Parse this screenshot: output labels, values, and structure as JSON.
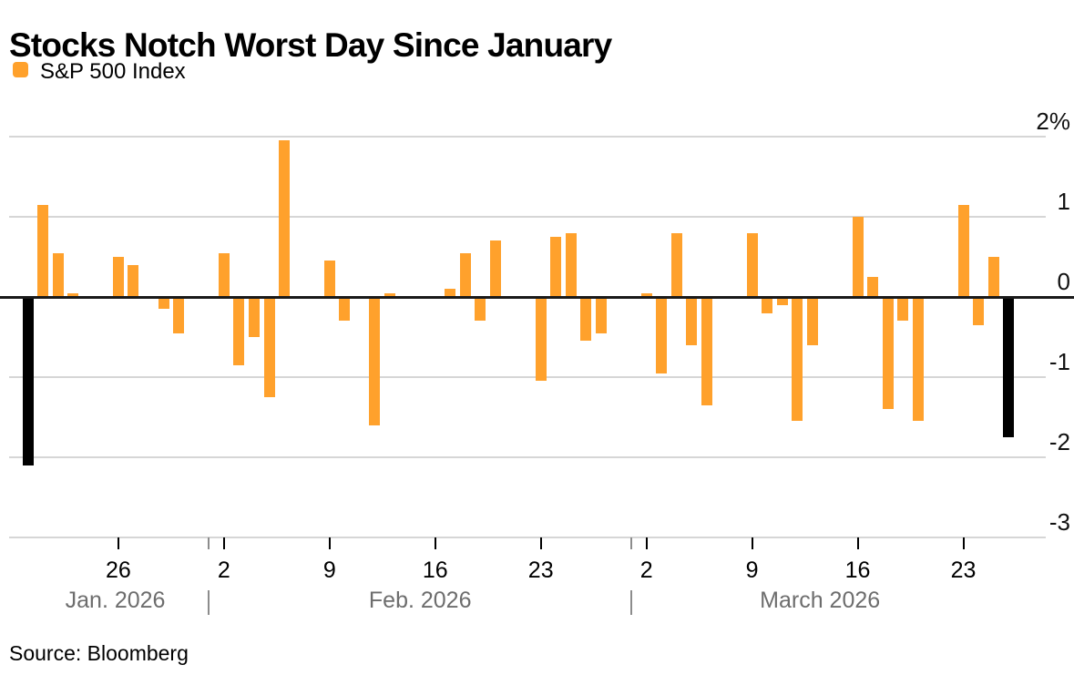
{
  "title": "Stocks Notch Worst Day Since January",
  "legend": {
    "label": "S&P 500 Index"
  },
  "source": "Source: Bloomberg",
  "colors": {
    "bar": "#FFA12C",
    "highlight_bar": "#000000",
    "grid": "#D6D6D6",
    "zero_line": "#1A1A1A",
    "axis_text": "#111111",
    "month_text": "#6D6D6D",
    "separator": "#8C8C8C"
  },
  "chart_data": {
    "type": "bar",
    "title": "Stocks Notch Worst Day Since January",
    "series_name": "S&P 500 Index",
    "y_unit": "%",
    "ylim": [
      -3,
      2
    ],
    "grid": true,
    "legend_position": "top-left",
    "highlight_note": "First bar (Jan 20) and last bar (Mar 26) are black; all others orange",
    "y_ticks": [
      {
        "v": 2,
        "label": "2%"
      },
      {
        "v": 1,
        "label": "1"
      },
      {
        "v": 0,
        "label": "0"
      },
      {
        "v": -1,
        "label": "-1"
      },
      {
        "v": -2,
        "label": "-2"
      },
      {
        "v": -3,
        "label": "-3"
      }
    ],
    "x_week_ticks": [
      {
        "slot": 6,
        "label": "26"
      },
      {
        "slot": 13,
        "label": "2"
      },
      {
        "slot": 20,
        "label": "9"
      },
      {
        "slot": 27,
        "label": "16"
      },
      {
        "slot": 34,
        "label": "23"
      },
      {
        "slot": 41,
        "label": "2"
      },
      {
        "slot": 48,
        "label": "9"
      },
      {
        "slot": 55,
        "label": "16"
      },
      {
        "slot": 62,
        "label": "23"
      }
    ],
    "month_separator_slots": [
      12,
      40
    ],
    "month_labels": [
      {
        "label": "Jan. 2026",
        "slot": 5.8
      },
      {
        "label": "Feb. 2026",
        "slot": 26.0
      },
      {
        "label": "March 2026",
        "slot": 52.5
      }
    ],
    "slot_note": "slot = calendar days after Jan 20 2026; weekends/holiday left empty",
    "bars": [
      {
        "date": "Jan 20",
        "slot": 0,
        "value": -2.1,
        "highlight": true
      },
      {
        "date": "Jan 21",
        "slot": 1,
        "value": 1.15
      },
      {
        "date": "Jan 22",
        "slot": 2,
        "value": 0.55
      },
      {
        "date": "Jan 23",
        "slot": 3,
        "value": 0.05
      },
      {
        "date": "Jan 26",
        "slot": 6,
        "value": 0.5
      },
      {
        "date": "Jan 27",
        "slot": 7,
        "value": 0.4
      },
      {
        "date": "Jan 28",
        "slot": 8,
        "value": 0.0
      },
      {
        "date": "Jan 29",
        "slot": 9,
        "value": -0.15
      },
      {
        "date": "Jan 30",
        "slot": 10,
        "value": -0.45
      },
      {
        "date": "Feb 2",
        "slot": 13,
        "value": 0.55
      },
      {
        "date": "Feb 3",
        "slot": 14,
        "value": -0.85
      },
      {
        "date": "Feb 4",
        "slot": 15,
        "value": -0.5
      },
      {
        "date": "Feb 5",
        "slot": 16,
        "value": -1.25
      },
      {
        "date": "Feb 6",
        "slot": 17,
        "value": 1.95
      },
      {
        "date": "Feb 9",
        "slot": 20,
        "value": 0.45
      },
      {
        "date": "Feb 10",
        "slot": 21,
        "value": -0.3
      },
      {
        "date": "Feb 11",
        "slot": 22,
        "value": 0.0
      },
      {
        "date": "Feb 12",
        "slot": 23,
        "value": -1.6
      },
      {
        "date": "Feb 13",
        "slot": 24,
        "value": 0.05
      },
      {
        "date": "Feb 17",
        "slot": 28,
        "value": 0.1
      },
      {
        "date": "Feb 18",
        "slot": 29,
        "value": 0.55
      },
      {
        "date": "Feb 19",
        "slot": 30,
        "value": -0.3
      },
      {
        "date": "Feb 20",
        "slot": 31,
        "value": 0.7
      },
      {
        "date": "Feb 23",
        "slot": 34,
        "value": -1.05
      },
      {
        "date": "Feb 24",
        "slot": 35,
        "value": 0.75
      },
      {
        "date": "Feb 25",
        "slot": 36,
        "value": 0.8
      },
      {
        "date": "Feb 26",
        "slot": 37,
        "value": -0.55
      },
      {
        "date": "Feb 27",
        "slot": 38,
        "value": -0.45
      },
      {
        "date": "Mar 2",
        "slot": 41,
        "value": 0.05
      },
      {
        "date": "Mar 3",
        "slot": 42,
        "value": -0.95
      },
      {
        "date": "Mar 4",
        "slot": 43,
        "value": 0.8
      },
      {
        "date": "Mar 5",
        "slot": 44,
        "value": -0.6
      },
      {
        "date": "Mar 6",
        "slot": 45,
        "value": -1.35
      },
      {
        "date": "Mar 9",
        "slot": 48,
        "value": 0.8
      },
      {
        "date": "Mar 10",
        "slot": 49,
        "value": -0.2
      },
      {
        "date": "Mar 11",
        "slot": 50,
        "value": -0.1
      },
      {
        "date": "Mar 12",
        "slot": 51,
        "value": -1.55
      },
      {
        "date": "Mar 13",
        "slot": 52,
        "value": -0.6
      },
      {
        "date": "Mar 16",
        "slot": 55,
        "value": 1.0
      },
      {
        "date": "Mar 17",
        "slot": 56,
        "value": 0.25
      },
      {
        "date": "Mar 18",
        "slot": 57,
        "value": -1.4
      },
      {
        "date": "Mar 19",
        "slot": 58,
        "value": -0.3
      },
      {
        "date": "Mar 20",
        "slot": 59,
        "value": -1.55
      },
      {
        "date": "Mar 23",
        "slot": 62,
        "value": 1.15
      },
      {
        "date": "Mar 24",
        "slot": 63,
        "value": -0.35
      },
      {
        "date": "Mar 25",
        "slot": 64,
        "value": 0.5
      },
      {
        "date": "Mar 26",
        "slot": 65,
        "value": -1.75,
        "highlight": true
      }
    ]
  }
}
